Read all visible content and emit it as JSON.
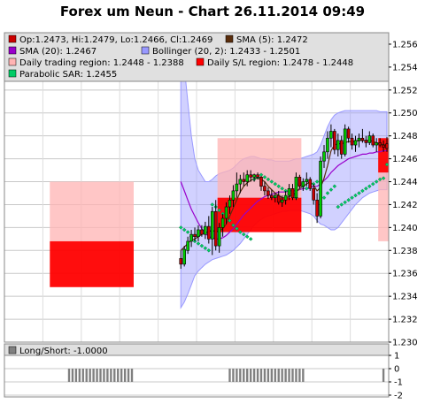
{
  "chart_data": {
    "type": "candlestick",
    "title": "Forex um Neun - Chart 26.11.2014 09:49",
    "legend": {
      "ohlc": "Op:1.2473, Hi:1.2479, Lo:1.2466, Cl:1.2469",
      "sma5": "SMA (5): 1.2472",
      "sma20": "SMA (20): 1.2467",
      "bollinger": "Bollinger (20, 2): 1.2433 - 1.2501",
      "daily_trading_region": "Daily trading region: 1.2448 - 1.2388",
      "daily_sl_region": "Daily S/L region: 1.2478 - 1.2448",
      "sar": "Parabolic SAR: 1.2455"
    },
    "colors": {
      "up": "#00cc00",
      "down": "#cc0000",
      "sma5": "#5a2d0c",
      "sma20": "#9900cc",
      "bollinger": "#9999ff",
      "sar": "#00cc66",
      "trading_region": "#ffb3b3",
      "sl_region": "#ff0000"
    },
    "ylim": [
      1.23,
      1.257
    ],
    "y_ticks": [
      "1.230",
      "1.232",
      "1.234",
      "1.236",
      "1.238",
      "1.240",
      "1.242",
      "1.244",
      "1.246",
      "1.248",
      "1.250",
      "1.252",
      "1.254",
      "1.256"
    ],
    "grid": true,
    "candles_ohlc": [
      [
        1.2373,
        1.238,
        1.2364,
        1.2368
      ],
      [
        1.2368,
        1.2384,
        1.2366,
        1.2381
      ],
      [
        1.238,
        1.2392,
        1.2377,
        1.2388
      ],
      [
        1.2388,
        1.2398,
        1.2383,
        1.2394
      ],
      [
        1.2394,
        1.24,
        1.2388,
        1.2392
      ],
      [
        1.2392,
        1.2402,
        1.2388,
        1.2398
      ],
      [
        1.2398,
        1.2402,
        1.2392,
        1.2394
      ],
      [
        1.2394,
        1.2405,
        1.239,
        1.2401
      ],
      [
        1.2401,
        1.241,
        1.2386,
        1.239
      ],
      [
        1.239,
        1.2418,
        1.2376,
        1.2414
      ],
      [
        1.2414,
        1.2424,
        1.238,
        1.2384
      ],
      [
        1.2384,
        1.2404,
        1.2378,
        1.24
      ],
      [
        1.24,
        1.2412,
        1.2392,
        1.2408
      ],
      [
        1.2408,
        1.2422,
        1.2403,
        1.2418
      ],
      [
        1.2418,
        1.2428,
        1.2412,
        1.2424
      ],
      [
        1.2424,
        1.2437,
        1.2418,
        1.2432
      ],
      [
        1.2432,
        1.2448,
        1.2426,
        1.2438
      ],
      [
        1.2438,
        1.2446,
        1.243,
        1.2442
      ],
      [
        1.2442,
        1.2448,
        1.2436,
        1.244
      ],
      [
        1.244,
        1.245,
        1.2436,
        1.2446
      ],
      [
        1.2446,
        1.245,
        1.244,
        1.2444
      ],
      [
        1.2444,
        1.2447,
        1.244,
        1.2446
      ],
      [
        1.2446,
        1.2448,
        1.2442,
        1.2444
      ],
      [
        1.2444,
        1.2445,
        1.2432,
        1.2436
      ],
      [
        1.2436,
        1.244,
        1.2428,
        1.2432
      ],
      [
        1.2432,
        1.2435,
        1.2425,
        1.2428
      ],
      [
        1.2428,
        1.2433,
        1.2424,
        1.2426
      ],
      [
        1.2426,
        1.243,
        1.2422,
        1.2428
      ],
      [
        1.2428,
        1.2432,
        1.242,
        1.2422
      ],
      [
        1.2422,
        1.2428,
        1.2418,
        1.2424
      ],
      [
        1.2424,
        1.2432,
        1.242,
        1.2428
      ],
      [
        1.2428,
        1.2438,
        1.2424,
        1.2434
      ],
      [
        1.2434,
        1.2438,
        1.2424,
        1.2426
      ],
      [
        1.2426,
        1.2448,
        1.2424,
        1.2444
      ],
      [
        1.2444,
        1.2446,
        1.2434,
        1.2436
      ],
      [
        1.2436,
        1.2443,
        1.2432,
        1.244
      ],
      [
        1.244,
        1.2448,
        1.2436,
        1.2442
      ],
      [
        1.2442,
        1.2444,
        1.2432,
        1.2434
      ],
      [
        1.2434,
        1.2438,
        1.242,
        1.2424
      ],
      [
        1.2424,
        1.243,
        1.2404,
        1.241
      ],
      [
        1.241,
        1.2462,
        1.2408,
        1.2458
      ],
      [
        1.2458,
        1.2472,
        1.2452,
        1.2466
      ],
      [
        1.2466,
        1.2484,
        1.246,
        1.2478
      ],
      [
        1.2478,
        1.249,
        1.247,
        1.2484
      ],
      [
        1.2484,
        1.2486,
        1.2464,
        1.2468
      ],
      [
        1.2468,
        1.2482,
        1.2462,
        1.2476
      ],
      [
        1.2476,
        1.248,
        1.246,
        1.2464
      ],
      [
        1.2464,
        1.249,
        1.2462,
        1.2486
      ],
      [
        1.2486,
        1.2488,
        1.2474,
        1.2478
      ],
      [
        1.2478,
        1.2482,
        1.2468,
        1.2472
      ],
      [
        1.2472,
        1.248,
        1.2466,
        1.2476
      ],
      [
        1.2476,
        1.2482,
        1.247,
        1.2478
      ],
      [
        1.2478,
        1.2486,
        1.2474,
        1.2476
      ],
      [
        1.2476,
        1.248,
        1.247,
        1.2474
      ],
      [
        1.2474,
        1.2484,
        1.2472,
        1.248
      ],
      [
        1.248,
        1.2482,
        1.247,
        1.2472
      ],
      [
        1.2472,
        1.2478,
        1.2466,
        1.2474
      ],
      [
        1.2474,
        1.2478,
        1.247,
        1.2472
      ],
      [
        1.2472,
        1.2476,
        1.2466,
        1.247
      ],
      [
        1.2473,
        1.2479,
        1.2466,
        1.2469
      ]
    ],
    "sma5": [
      1.238,
      1.2383,
      1.2386,
      1.2389,
      1.239,
      1.2392,
      1.2394,
      1.2396,
      1.2396,
      1.2398,
      1.2396,
      1.2397,
      1.2399,
      1.2403,
      1.241,
      1.2417,
      1.2424,
      1.2431,
      1.2436,
      1.2439,
      1.2441,
      1.2443,
      1.2443,
      1.2442,
      1.244,
      1.2436,
      1.2433,
      1.243,
      1.2428,
      1.2426,
      1.2426,
      1.2427,
      1.2428,
      1.2431,
      1.2434,
      1.2436,
      1.2438,
      1.244,
      1.2437,
      1.2432,
      1.2435,
      1.2443,
      1.2454,
      1.2467,
      1.2472,
      1.2473,
      1.2473,
      1.2474,
      1.2475,
      1.2475,
      1.2475,
      1.2476,
      1.2476,
      1.2476,
      1.2476,
      1.2475,
      1.2474,
      1.2473,
      1.2472,
      1.2472
    ],
    "sma20": [
      1.244,
      1.2432,
      1.2424,
      1.2416,
      1.241,
      1.2404,
      1.2399,
      1.2395,
      1.2392,
      1.2391,
      1.239,
      1.239,
      1.2391,
      1.2393,
      1.2396,
      1.2399,
      1.2403,
      1.2407,
      1.2411,
      1.2414,
      1.2417,
      1.242,
      1.2423,
      1.2425,
      1.2427,
      1.2428,
      1.2429,
      1.243,
      1.2431,
      1.2431,
      1.2431,
      1.2432,
      1.2432,
      1.2432,
      1.2433,
      1.2434,
      1.2434,
      1.2435,
      1.2436,
      1.2436,
      1.2438,
      1.2441,
      1.2444,
      1.2448,
      1.2451,
      1.2454,
      1.2456,
      1.2458,
      1.246,
      1.2461,
      1.2462,
      1.2463,
      1.2464,
      1.2464,
      1.2465,
      1.2465,
      1.2466,
      1.2466,
      1.2467,
      1.2467
    ],
    "boll_upper": [
      1.256,
      1.254,
      1.251,
      1.248,
      1.246,
      1.245,
      1.2445,
      1.244,
      1.244,
      1.2442,
      1.2445,
      1.2447,
      1.2448,
      1.2449,
      1.245,
      1.2452,
      1.2455,
      1.2458,
      1.246,
      1.2461,
      1.2462,
      1.2462,
      1.2461,
      1.246,
      1.246,
      1.2459,
      1.2459,
      1.2458,
      1.2458,
      1.2458,
      1.2458,
      1.2458,
      1.2459,
      1.246,
      1.246,
      1.2461,
      1.2462,
      1.2463,
      1.2464,
      1.2466,
      1.2472,
      1.248,
      1.2488,
      1.2494,
      1.2498,
      1.25,
      1.2501,
      1.2502,
      1.2502,
      1.2502,
      1.2502,
      1.2502,
      1.2502,
      1.2502,
      1.2502,
      1.2502,
      1.2502,
      1.2501,
      1.2501,
      1.2501
    ],
    "boll_lower": [
      1.233,
      1.2335,
      1.2342,
      1.235,
      1.2358,
      1.2362,
      1.2365,
      1.2368,
      1.237,
      1.2372,
      1.2373,
      1.2374,
      1.2375,
      1.2376,
      1.2378,
      1.238,
      1.2383,
      1.2386,
      1.239,
      1.2394,
      1.2398,
      1.2402,
      1.2405,
      1.2407,
      1.2409,
      1.241,
      1.2411,
      1.2412,
      1.2413,
      1.2414,
      1.2414,
      1.2415,
      1.2415,
      1.2415,
      1.2415,
      1.2414,
      1.2413,
      1.2412,
      1.241,
      1.2406,
      1.2403,
      1.2402,
      1.24,
      1.2398,
      1.2398,
      1.24,
      1.2404,
      1.2408,
      1.2412,
      1.2416,
      1.242,
      1.2423,
      1.2426,
      1.2428,
      1.243,
      1.2431,
      1.2432,
      1.2433,
      1.2433,
      1.2433
    ],
    "sar": [
      1.24,
      1.2398,
      1.2396,
      1.2392,
      1.2388,
      1.2386,
      1.2384,
      1.2382,
      1.238,
      1.242,
      1.2418,
      1.2415,
      1.2412,
      1.241,
      1.2406,
      1.2402,
      1.2399,
      1.2396,
      1.2394,
      1.2392,
      1.239,
      1.2442,
      1.2444,
      1.2446,
      1.2444,
      1.2442,
      1.244,
      1.2438,
      1.2436,
      1.2434,
      1.2432,
      1.243,
      1.2428,
      1.2426,
      1.2438,
      1.2436,
      1.2434,
      1.2436,
      1.2438,
      1.244,
      1.242,
      1.2426,
      1.243,
      1.2433,
      1.2436,
      1.2418,
      1.242,
      1.2422,
      1.2424,
      1.2426,
      1.2428,
      1.243,
      1.2432,
      1.2434,
      1.2436,
      1.2438,
      1.244,
      1.2442,
      1.2443,
      1.2455
    ],
    "regions": [
      {
        "start": 13,
        "end": 37,
        "trading": [
          1.2388,
          1.244
        ],
        "sl": [
          1.2348,
          1.2388
        ]
      },
      {
        "start": 61,
        "end": 85,
        "trading": [
          1.2426,
          1.2478
        ],
        "sl": [
          1.2396,
          1.2426
        ]
      },
      {
        "start": 107,
        "end": 110,
        "trading": [
          1.2388,
          1.2448
        ],
        "sl": [
          1.2448,
          1.2478
        ]
      }
    ],
    "long_short": {
      "label": "Long/Short: -1.0000",
      "value": -1.0,
      "ylim": [
        -2,
        1
      ],
      "y_ticks": [
        "1",
        "0",
        "-1",
        "-2"
      ],
      "bars": [
        [
          18,
          37
        ],
        [
          64,
          86
        ]
      ],
      "last_bar": 108
    }
  }
}
